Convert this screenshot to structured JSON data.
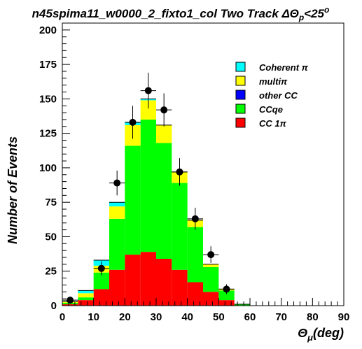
{
  "chart_data": {
    "type": "bar",
    "stacked": true,
    "title": "n45spima11_w0000_2_fixto1_col Two Track ΔΘp<25°",
    "title_parts": {
      "main": "n45spima11_w0000_2_fixto1_col Two Track ΔΘ",
      "sub": "p",
      "tail": "<25",
      "sup": "o"
    },
    "xlabel": "Θμ(deg)",
    "xlabel_parts": {
      "main": "Θ",
      "sub": "μ",
      "tail": "(deg)"
    },
    "ylabel": "Number of Events",
    "xlim": [
      0,
      90
    ],
    "ylim": [
      0,
      205
    ],
    "x_ticks": [
      0,
      10,
      20,
      30,
      40,
      50,
      60,
      70,
      80,
      90
    ],
    "x_tick_labels": [
      "0",
      "10",
      "20",
      "30",
      "40",
      "50",
      "60",
      "70",
      "80",
      "90"
    ],
    "y_ticks": [
      0,
      25,
      50,
      75,
      100,
      125,
      150,
      175,
      200
    ],
    "y_tick_labels": [
      "0",
      "25",
      "50",
      "75",
      "100",
      "125",
      "150",
      "175",
      "200"
    ],
    "bin_edges": [
      0,
      5,
      10,
      15,
      20,
      25,
      30,
      35,
      40,
      45,
      50,
      55,
      60
    ],
    "series": [
      {
        "name": "CC 1π",
        "color": "#ff0000",
        "values": [
          1,
          4,
          12,
          26,
          37,
          39,
          34,
          26,
          17,
          10,
          4,
          0
        ]
      },
      {
        "name": "CCqe",
        "color": "#00ff00",
        "values": [
          1,
          2,
          12,
          37,
          79,
          96,
          84,
          63,
          40,
          18,
          7,
          1
        ]
      },
      {
        "name": "other CC",
        "color": "#0000ff",
        "values": [
          0,
          0,
          0,
          0,
          0,
          0,
          0,
          0,
          0,
          0,
          0,
          0
        ]
      },
      {
        "name": "multiπ",
        "color": "#ffff00",
        "values": [
          1,
          3,
          5,
          9,
          15,
          14,
          13,
          8,
          5,
          2,
          1,
          0
        ]
      },
      {
        "name": "Coherent π",
        "color": "#00ffff",
        "values": [
          0,
          2,
          4,
          3,
          2,
          1,
          0,
          0,
          0,
          0,
          0,
          0
        ]
      }
    ],
    "legend_order": [
      "Coherent π",
      "multiπ",
      "other CC",
      "CCqe",
      "CC 1π"
    ],
    "legend_placement": "top-right",
    "data_points": {
      "x": [
        2.5,
        7.5,
        12.5,
        17.5,
        22.5,
        27.5,
        32.5,
        37.5,
        42.5,
        47.5,
        52.5
      ],
      "y": [
        4,
        0,
        27,
        89,
        133,
        156,
        142,
        97,
        63,
        37,
        12
      ],
      "err": [
        2,
        0,
        5,
        9,
        12,
        13,
        12,
        10,
        8,
        6,
        3.5
      ],
      "xerr": 2.5
    },
    "grid": false
  }
}
